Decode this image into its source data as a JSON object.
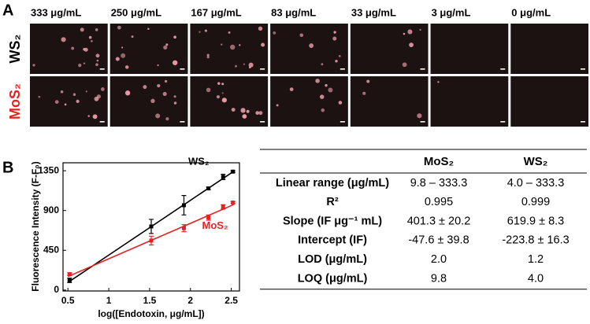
{
  "panel_a": {
    "label": "A",
    "columns": [
      "333 μg/mL",
      "250 μg/mL",
      "167 μg/mL",
      "83 μg/mL",
      "33 μg/mL",
      "3 μg/mL",
      "0 μg/mL"
    ],
    "rows": [
      {
        "label": "WS₂",
        "color": "#000000"
      },
      {
        "label": "MoS₂",
        "color": "#e8201f"
      }
    ]
  },
  "panel_b": {
    "label": "B"
  },
  "chart_data": {
    "type": "scatter",
    "x_label": "log([Endotoxin, μg/mL])",
    "y_label": "Fluorescence Intensity (F-F₀)",
    "xlim": [
      0.44,
      2.6
    ],
    "ylim": [
      -10,
      1440
    ],
    "xticks": [
      0.5,
      1.0,
      1.5,
      2.0,
      2.5
    ],
    "yticks": [
      0,
      450,
      900,
      1350
    ],
    "series": [
      {
        "name": "WS₂",
        "color": "#000000",
        "x": [
          0.52,
          1.52,
          1.92,
          2.22,
          2.4,
          2.52
        ],
        "values": [
          110,
          720,
          960,
          1150,
          1280,
          1340
        ],
        "errors": [
          25,
          80,
          110,
          15,
          30,
          10
        ],
        "fit": {
          "x": [
            0.5,
            2.53
          ],
          "values": [
            86,
            1344
          ]
        }
      },
      {
        "name": "MoS₂",
        "color": "#e8201f",
        "x": [
          0.52,
          1.52,
          1.92,
          2.22,
          2.4,
          2.52
        ],
        "values": [
          180,
          560,
          700,
          820,
          940,
          990
        ],
        "errors": [
          15,
          50,
          40,
          30,
          25,
          10
        ],
        "fit": {
          "x": [
            0.5,
            2.53
          ],
          "values": [
            153,
            968
          ]
        }
      }
    ]
  },
  "table": {
    "columns": [
      "MoS₂",
      "WS₂"
    ],
    "rows": [
      [
        "Linear range (μg/mL)",
        "9.8 – 333.3",
        "4.0 – 333.3"
      ],
      [
        "R²",
        "0.995",
        "0.999"
      ],
      [
        "Slope (IF μg⁻¹ mL)",
        "401.3 ± 20.2",
        "619.9 ± 8.3"
      ],
      [
        "Intercept (IF)",
        "-47.6 ± 39.8",
        "-223.8 ± 16.3"
      ],
      [
        "LOD (μg/mL)",
        "2.0",
        "1.2"
      ],
      [
        "LOQ (μg/mL)",
        "9.8",
        "4.0"
      ]
    ]
  }
}
